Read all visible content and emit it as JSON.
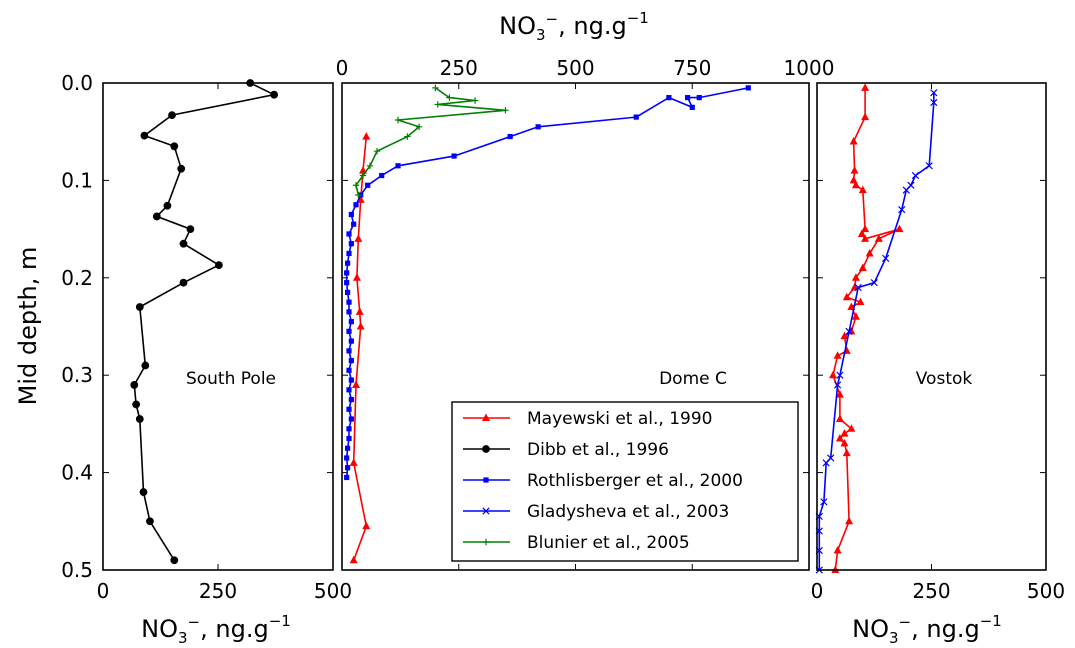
{
  "y_axis": {
    "label": "Mid depth, m",
    "ticks": [
      0.0,
      0.1,
      0.2,
      0.3,
      0.4,
      0.5
    ],
    "tick_labels": [
      "0.0",
      "0.1",
      "0.2",
      "0.3",
      "0.4",
      "0.5"
    ]
  },
  "x_axis_label": {
    "main": "NO",
    "sub": "3",
    "sup": "−",
    "rest": ", ng.g",
    "exp": "−1"
  },
  "panels": [
    {
      "id": "south-pole",
      "label": "South Pole",
      "x_ticks": [
        "0",
        "250",
        "500"
      ],
      "x_tick_values": [
        0,
        250,
        500
      ],
      "x_range": [
        0,
        500
      ]
    },
    {
      "id": "dome-c",
      "label": "Dome C",
      "x_ticks": [
        "0",
        "250",
        "500",
        "750",
        "1000"
      ],
      "x_tick_values": [
        0,
        250,
        500,
        750,
        1000
      ],
      "x_range": [
        0,
        1000
      ]
    },
    {
      "id": "vostok",
      "label": "Vostok",
      "x_ticks": [
        "0",
        "250",
        "500"
      ],
      "x_tick_values": [
        0,
        250,
        500
      ],
      "x_range": [
        0,
        500
      ]
    }
  ],
  "legend": [
    {
      "name": "Mayewski et al., 1990",
      "color": "#ff0000",
      "marker": "triangle"
    },
    {
      "name": "Dibb et al., 1996",
      "color": "#000000",
      "marker": "circle"
    },
    {
      "name": "Rothlisberger et al., 2000",
      "color": "#0000ff",
      "marker": "square"
    },
    {
      "name": "Gladysheva et al., 2003",
      "color": "#0000ff",
      "marker": "x"
    },
    {
      "name": "Blunier et al., 2005",
      "color": "#008000",
      "marker": "plus"
    }
  ],
  "chart_data": [
    {
      "type": "line",
      "panel": "south-pole",
      "xlim": [
        0,
        500
      ],
      "ylim": [
        0.5,
        0.0
      ],
      "series": [
        {
          "name": "Dibb et al., 1996",
          "color": "#000000",
          "marker": "circle",
          "x": [
            320,
            372,
            150,
            90,
            155,
            170,
            140,
            117,
            190,
            175,
            252,
            175,
            80,
            92,
            68,
            72,
            80,
            88,
            102,
            155
          ],
          "y": [
            0.0,
            0.012,
            0.033,
            0.054,
            0.065,
            0.088,
            0.126,
            0.137,
            0.15,
            0.165,
            0.187,
            0.205,
            0.23,
            0.29,
            0.31,
            0.33,
            0.345,
            0.42,
            0.45,
            0.49
          ]
        }
      ]
    },
    {
      "type": "line",
      "panel": "dome-c",
      "xlim": [
        0,
        1000
      ],
      "ylim": [
        0.5,
        0.0
      ],
      "series": [
        {
          "name": "Mayewski et al., 1990",
          "color": "#ff0000",
          "marker": "triangle",
          "x": [
            52,
            45,
            40,
            35,
            32,
            38,
            40,
            30,
            25,
            52,
            25
          ],
          "y": [
            0.055,
            0.09,
            0.12,
            0.16,
            0.2,
            0.235,
            0.25,
            0.31,
            0.39,
            0.455,
            0.49
          ]
        },
        {
          "name": "Rothlisberger et al., 2000",
          "color": "#0000ff",
          "marker": "square",
          "x": [
            870,
            765,
            740,
            750,
            700,
            630,
            420,
            360,
            240,
            120,
            85,
            55,
            40,
            30,
            20,
            25,
            15,
            20,
            15,
            12,
            10,
            10,
            12,
            15,
            15,
            20,
            15,
            20,
            15,
            20,
            15,
            20,
            15,
            20,
            15,
            20,
            15,
            15,
            12,
            10,
            12,
            10
          ],
          "y": [
            0.005,
            0.015,
            0.015,
            0.025,
            0.015,
            0.035,
            0.045,
            0.055,
            0.075,
            0.085,
            0.095,
            0.105,
            0.115,
            0.125,
            0.135,
            0.145,
            0.155,
            0.165,
            0.175,
            0.185,
            0.195,
            0.205,
            0.215,
            0.225,
            0.235,
            0.245,
            0.255,
            0.265,
            0.275,
            0.285,
            0.295,
            0.305,
            0.315,
            0.325,
            0.335,
            0.345,
            0.355,
            0.365,
            0.375,
            0.385,
            0.395,
            0.405
          ]
        },
        {
          "name": "Blunier et al., 2005",
          "color": "#008000",
          "marker": "plus",
          "x": [
            200,
            230,
            285,
            205,
            350,
            120,
            165,
            140,
            75,
            60,
            45,
            30,
            35
          ],
          "y": [
            0.005,
            0.015,
            0.018,
            0.022,
            0.028,
            0.038,
            0.045,
            0.055,
            0.07,
            0.085,
            0.095,
            0.105,
            0.115
          ]
        }
      ]
    },
    {
      "type": "line",
      "panel": "vostok",
      "xlim": [
        0,
        500
      ],
      "ylim": [
        0.5,
        0.0
      ],
      "series": [
        {
          "name": "Mayewski et al., 1990",
          "color": "#ff0000",
          "marker": "triangle",
          "x": [
            105,
            105,
            80,
            82,
            80,
            85,
            100,
            105,
            98,
            105,
            180,
            135,
            115,
            100,
            85,
            82,
            65,
            95,
            75,
            85,
            75,
            60,
            65,
            45,
            35,
            50,
            50,
            75,
            60,
            50,
            60,
            65,
            70,
            45,
            40
          ],
          "y": [
            0.005,
            0.035,
            0.06,
            0.09,
            0.1,
            0.105,
            0.11,
            0.15,
            0.155,
            0.16,
            0.15,
            0.16,
            0.175,
            0.19,
            0.2,
            0.21,
            0.22,
            0.225,
            0.23,
            0.24,
            0.255,
            0.26,
            0.275,
            0.28,
            0.3,
            0.32,
            0.345,
            0.355,
            0.36,
            0.365,
            0.37,
            0.38,
            0.45,
            0.48,
            0.5
          ]
        },
        {
          "name": "Gladysheva et al., 2003",
          "color": "#0000ff",
          "marker": "x",
          "x": [
            255,
            255,
            245,
            215,
            205,
            195,
            185,
            150,
            125,
            90,
            70,
            50,
            45,
            30,
            20,
            15,
            5,
            5,
            5,
            5
          ],
          "y": [
            0.01,
            0.02,
            0.085,
            0.095,
            0.105,
            0.11,
            0.13,
            0.18,
            0.205,
            0.21,
            0.255,
            0.3,
            0.31,
            0.385,
            0.39,
            0.43,
            0.445,
            0.46,
            0.48,
            0.5
          ]
        }
      ]
    }
  ]
}
